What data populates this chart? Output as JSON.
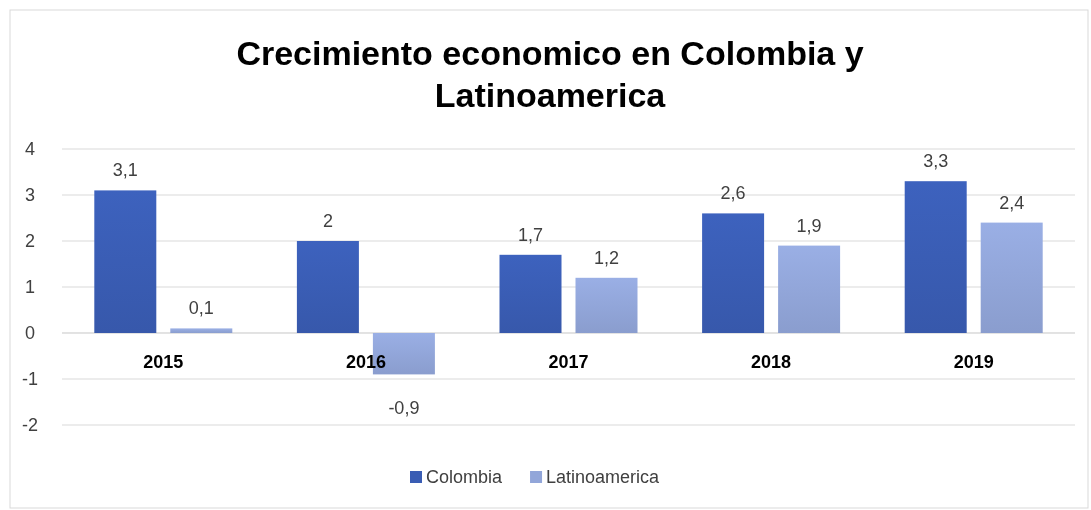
{
  "chart_data": {
    "type": "bar",
    "title": "Crecimiento economico en Colombia y Latinoamerica",
    "categories": [
      "2015",
      "2016",
      "2017",
      "2018",
      "2019"
    ],
    "series": [
      {
        "name": "Colombia",
        "color": "#3a5db4",
        "values": [
          3.1,
          2,
          1.7,
          2.6,
          3.3
        ],
        "value_labels": [
          "3,1",
          "2",
          "1,7",
          "2,6",
          "3,3"
        ]
      },
      {
        "name": "Latinoamerica",
        "color": "#92a6d9",
        "values": [
          0.1,
          -0.9,
          1.2,
          1.9,
          2.4
        ],
        "value_labels": [
          "0,1",
          "-0,9",
          "1,2",
          "1,9",
          "2,4"
        ]
      }
    ],
    "ylim": [
      -2,
      4
    ],
    "yticks": [
      -2,
      -1,
      0,
      1,
      2,
      3,
      4
    ],
    "grid": "y",
    "legend": "bottom"
  }
}
